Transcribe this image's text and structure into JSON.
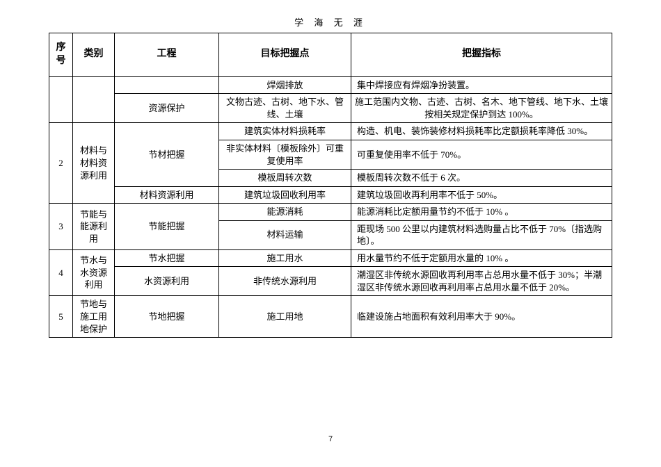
{
  "doc": {
    "header": "学 海 无 涯",
    "pageNumber": "7"
  },
  "headers": {
    "seq": "序号",
    "category": "类别",
    "project": "工程",
    "point": "目标把握点",
    "indicator": "把握指标"
  },
  "rows": {
    "r1": {
      "point": "焊烟排放",
      "indicator": "集中焊接应有焊烟净扮装置。"
    },
    "r2": {
      "project": "资源保护",
      "point": "文物古迹、古树、地下水、管线、土壤",
      "indicator": "施工范围内文物、古迹、古树、名木、地下管线、地下水、土壤按相关规定保护到达 100%。"
    },
    "r3": {
      "seq": "2",
      "category": "材料与材料资源利用",
      "project": "节材把握",
      "point": "建筑实体材料损耗率",
      "indicator": "构造、机电、装饰装修材料损耗率比定额损耗率降低 30%。"
    },
    "r4": {
      "point": "非实体材料〔模板除外〕可重复使用率",
      "indicator": "可重复使用率不低于 70%。"
    },
    "r5": {
      "point": "模板周转次数",
      "indicator": "模板周转次数不低于 6 次。"
    },
    "r6": {
      "project": "材料资源利用",
      "point": "建筑垃圾回收利用率",
      "indicator": "建筑垃圾回收再利用率不低于 50%。"
    },
    "r7": {
      "seq": "3",
      "category": "节能与能源利用",
      "project": "节能把握",
      "point": "能源消耗",
      "indicator": "能源消耗比定额用量节约不低于 10% 。"
    },
    "r8": {
      "point": "材料运输",
      "indicator": "距现场 500 公里以内建筑材料选购量占比不低于 70%〔指选购地〕。"
    },
    "r9": {
      "seq": "4",
      "category": "节水与水资源利用",
      "project": "节水把握",
      "point": "施工用水",
      "indicator": "用水量节约不低于定额用水量的 10% 。"
    },
    "r10": {
      "project": "水资源利用",
      "point": "非传统水源利用",
      "indicator": "潮湿区非传统水源回收再利用率占总用水量不低于 30%；半潮湿区非传统水源回收再利用率占总用水量不低于 20%。"
    },
    "r11": {
      "seq": "5",
      "category": "节地与施工用地保护",
      "project": "节地把握",
      "point": "施工用地",
      "indicator": "临建设施占地面积有效利用率大于 90%。"
    }
  }
}
